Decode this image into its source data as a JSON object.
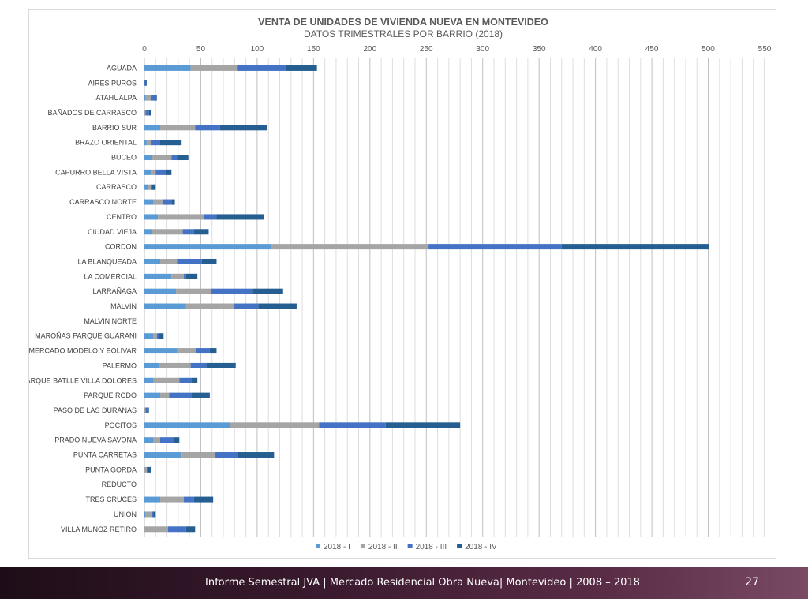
{
  "chart_data": {
    "type": "bar",
    "orientation": "horizontal",
    "stacked": true,
    "title": "VENTA DE UNIDADES DE VIVIENDA NUEVA EN MONTEVIDEO",
    "subtitle": "DATOS TRIMESTRALES POR BARRIO (2018)",
    "xlim": [
      0,
      550
    ],
    "x_ticks": [
      0,
      50,
      100,
      150,
      200,
      250,
      300,
      350,
      400,
      450,
      500,
      550
    ],
    "grid": "vertical minor lines every 10",
    "legend_position": "bottom",
    "categories": [
      "AGUADA",
      "AIRES PUROS",
      "ATAHUALPA",
      "BAÑADOS DE CARRASCO",
      "BARRIO SUR",
      "BRAZO ORIENTAL",
      "BUCEO",
      "CAPURRO BELLA VISTA",
      "CARRASCO",
      "CARRASCO NORTE",
      "CENTRO",
      "CIUDAD VIEJA",
      "CORDON",
      "LA BLANQUEADA",
      "LA COMERCIAL",
      "LARRAÑAGA",
      "MALVIN",
      "MALVIN NORTE",
      "MAROÑAS PARQUE GUARANI",
      "MERCADO MODELO Y BOLIVAR",
      "PALERMO",
      "PARQUE BATLLE VILLA DOLORES",
      "PARQUE RODO",
      "PASO DE LAS DURANAS",
      "POCITOS",
      "PRADO NUEVA SAVONA",
      "PUNTA CARRETAS",
      "PUNTA GORDA",
      "REDUCTO",
      "TRES CRUCES",
      "UNION",
      "VILLA MUÑOZ RETIRO"
    ],
    "series": [
      {
        "name": "2018 - I",
        "color": "#5b9bd5",
        "values": [
          41,
          0,
          1,
          0,
          14,
          2,
          7,
          6,
          3,
          8,
          12,
          7,
          112,
          14,
          24,
          28,
          37,
          0,
          8,
          29,
          13,
          8,
          14,
          0,
          76,
          8,
          33,
          0,
          0,
          14,
          1,
          0
        ]
      },
      {
        "name": "2018 - II",
        "color": "#a5a5a5",
        "values": [
          41,
          0,
          5,
          1,
          31,
          4,
          17,
          4,
          3,
          8,
          41,
          27,
          140,
          15,
          11,
          31,
          42,
          0,
          3,
          17,
          28,
          23,
          8,
          1,
          79,
          6,
          30,
          2,
          0,
          21,
          6,
          21
        ]
      },
      {
        "name": "2018 - III",
        "color": "#4472c4",
        "values": [
          43,
          1,
          4,
          3,
          22,
          8,
          5,
          9,
          1,
          8,
          11,
          10,
          118,
          22,
          2,
          37,
          22,
          0,
          2,
          12,
          14,
          11,
          20,
          2,
          59,
          12,
          20,
          1,
          0,
          9,
          1,
          16
        ]
      },
      {
        "name": "2018 - IV",
        "color": "#255e91",
        "values": [
          28,
          1,
          1,
          2,
          42,
          19,
          10,
          5,
          3,
          3,
          42,
          13,
          131,
          13,
          10,
          27,
          34,
          0,
          4,
          6,
          26,
          5,
          16,
          1,
          66,
          5,
          32,
          3,
          0,
          17,
          2,
          8
        ]
      }
    ]
  },
  "footer": {
    "text": "Informe Semestral JVA | Mercado Residencial Obra Nueva| Montevideo | 2008 – 2018",
    "page_number": "27"
  }
}
